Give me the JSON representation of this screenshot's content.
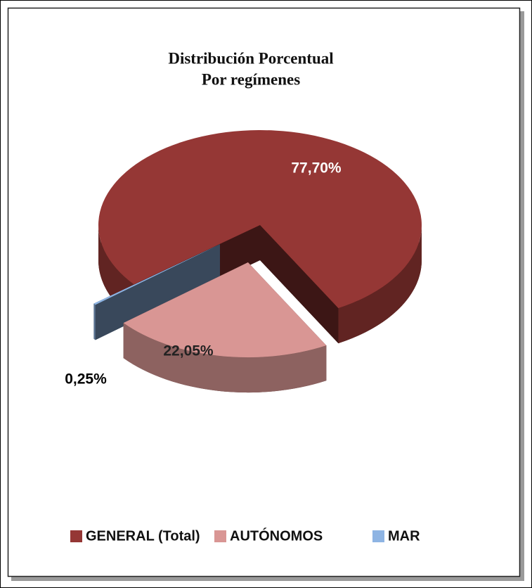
{
  "chart_data": {
    "type": "pie",
    "title": [
      "Distribución Porcentual",
      "Por regímenes"
    ],
    "categories": [
      "GENERAL (Total)",
      "AUTÓNOMOS",
      "MAR"
    ],
    "values": [
      77.7,
      22.05,
      0.25
    ],
    "value_labels": [
      "77,70%",
      "22,05%",
      "0,25%"
    ],
    "colors": [
      "#953735",
      "#d99694",
      "#8eb4e3"
    ],
    "legend": "bottom"
  }
}
